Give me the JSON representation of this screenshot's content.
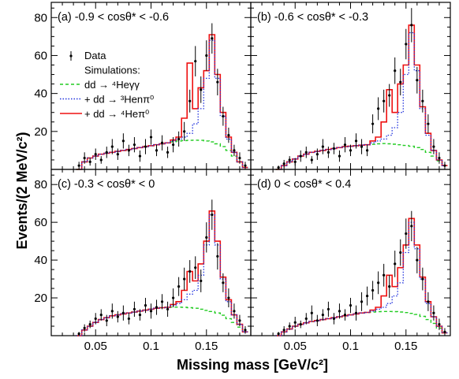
{
  "chart_data": {
    "type": "line",
    "xlabel": "Missing mass [GeV/c²]",
    "ylabel": "Events/(2 MeV/c²)",
    "xlim": [
      0.01,
      0.19
    ],
    "ylim": [
      0,
      88
    ],
    "x_ticks": [
      0.05,
      0.1,
      0.15
    ],
    "x_tick_labels": [
      "0.05",
      "0.1",
      "0.15"
    ],
    "y_ticks": [
      20,
      40,
      60,
      80
    ],
    "y_tick_labels": [
      "20",
      "40",
      "60",
      "80"
    ],
    "legend": {
      "placement": "panel-a-left",
      "entries": [
        {
          "label": "Data",
          "style": "marker"
        },
        {
          "label": "Simulations:",
          "style": "none"
        },
        {
          "label": "dd → ⁴Heγγ",
          "style": "dashed",
          "color": "#22cc22"
        },
        {
          "label": "+ dd → ³Henπ⁰",
          "style": "dotted",
          "color": "#2233dd"
        },
        {
          "label": "+ dd → ⁴Heπ⁰",
          "style": "solid",
          "color": "#ee1111"
        }
      ]
    },
    "colors": {
      "data": "#000000",
      "gg": "#22cc22",
      "npi": "#2233dd",
      "pi0": "#ee1111",
      "total": "#cc22cc"
    },
    "panels": [
      {
        "title": "(a) -0.9 < cosθ* < -0.6",
        "x": [
          0.035,
          0.04,
          0.045,
          0.05,
          0.055,
          0.06,
          0.065,
          0.07,
          0.075,
          0.08,
          0.085,
          0.09,
          0.095,
          0.1,
          0.105,
          0.11,
          0.115,
          0.12,
          0.125,
          0.13,
          0.135,
          0.14,
          0.145,
          0.15,
          0.155,
          0.16,
          0.165,
          0.17,
          0.175,
          0.18,
          0.185
        ],
        "data_y": [
          2,
          6,
          4,
          8,
          5,
          9,
          12,
          8,
          15,
          10,
          13,
          7,
          12,
          17,
          10,
          14,
          9,
          13,
          16,
          20,
          36,
          57,
          42,
          60,
          69,
          46,
          28,
          18,
          10,
          6,
          2
        ],
        "data_err": [
          2,
          3,
          2,
          3,
          2,
          3,
          4,
          3,
          4,
          3,
          4,
          3,
          4,
          4,
          3,
          4,
          3,
          4,
          4,
          5,
          6,
          8,
          7,
          8,
          8,
          7,
          5,
          4,
          3,
          3,
          2
        ],
        "gg": [
          0,
          4,
          6,
          7,
          8,
          8.5,
          9,
          9.5,
          10,
          10.5,
          11,
          11.5,
          12,
          12.5,
          13,
          13.5,
          14,
          14.5,
          15,
          15.2,
          15.3,
          15.4,
          15.3,
          15,
          14.5,
          13.5,
          12,
          10,
          7,
          4,
          1
        ],
        "npi": [
          0,
          4,
          6,
          7,
          8,
          8.5,
          9,
          9.5,
          10,
          10.5,
          11,
          11.5,
          12,
          12.5,
          13,
          13.5,
          14,
          15,
          16,
          17,
          19,
          24,
          32,
          48,
          68,
          48,
          28,
          16,
          9,
          4,
          1
        ],
        "pi0": [
          0,
          4,
          6,
          7,
          8,
          8.5,
          9,
          9.5,
          10,
          10.5,
          11,
          11.5,
          12,
          12.5,
          13,
          13.5,
          14,
          15.5,
          17,
          27,
          56,
          32,
          43,
          52,
          71,
          50,
          30,
          17,
          9,
          4,
          1
        ]
      },
      {
        "title": "(b) -0.6 < cosθ* < -0.3",
        "x": [
          0.035,
          0.04,
          0.045,
          0.05,
          0.055,
          0.06,
          0.065,
          0.07,
          0.075,
          0.08,
          0.085,
          0.09,
          0.095,
          0.1,
          0.105,
          0.11,
          0.115,
          0.12,
          0.125,
          0.13,
          0.135,
          0.14,
          0.145,
          0.15,
          0.155,
          0.16,
          0.165,
          0.17,
          0.175,
          0.18,
          0.185
        ],
        "data_y": [
          1,
          3,
          5,
          4,
          7,
          9,
          5,
          8,
          12,
          9,
          11,
          7,
          13,
          10,
          15,
          12,
          10,
          24,
          32,
          36,
          39,
          52,
          46,
          66,
          76,
          47,
          36,
          24,
          12,
          6,
          2
        ],
        "data_err": [
          1,
          2,
          2,
          2,
          3,
          3,
          2,
          3,
          4,
          3,
          3,
          3,
          4,
          3,
          4,
          4,
          3,
          5,
          6,
          6,
          6,
          7,
          7,
          8,
          9,
          7,
          6,
          5,
          4,
          3,
          2
        ],
        "gg": [
          0,
          2,
          4,
          5.5,
          7,
          8,
          9,
          9.5,
          10,
          10.5,
          11,
          11.5,
          12,
          12.2,
          12.5,
          12.8,
          13,
          13.2,
          13.5,
          13.6,
          13.5,
          13.3,
          13,
          12.6,
          12.2,
          11.5,
          10.5,
          9,
          7,
          4.5,
          2
        ],
        "npi": [
          0,
          2,
          4,
          5.5,
          7,
          8,
          9,
          9.5,
          10,
          10.5,
          11,
          11.5,
          12,
          12.2,
          12.5,
          12.8,
          13,
          14,
          15,
          16,
          18,
          22,
          30,
          50,
          72,
          52,
          32,
          18,
          10,
          5,
          2
        ],
        "pi0": [
          0,
          2,
          4,
          5.5,
          7,
          8,
          9,
          9.5,
          10,
          10.5,
          11,
          11.5,
          12,
          12.2,
          12.5,
          12.8,
          13,
          15,
          17,
          25,
          42,
          30,
          45,
          55,
          76,
          55,
          33,
          19,
          10,
          5,
          2
        ]
      },
      {
        "title": "(c) -0.3 < cosθ* < 0",
        "x": [
          0.035,
          0.04,
          0.045,
          0.05,
          0.055,
          0.06,
          0.065,
          0.07,
          0.075,
          0.08,
          0.085,
          0.09,
          0.095,
          0.1,
          0.105,
          0.11,
          0.115,
          0.12,
          0.125,
          0.13,
          0.135,
          0.14,
          0.145,
          0.15,
          0.155,
          0.16,
          0.165,
          0.17,
          0.175,
          0.18,
          0.185
        ],
        "data_y": [
          1,
          4,
          6,
          9,
          11,
          8,
          13,
          10,
          12,
          9,
          14,
          11,
          16,
          13,
          15,
          18,
          14,
          20,
          26,
          30,
          34,
          36,
          29,
          52,
          64,
          42,
          28,
          20,
          13,
          8,
          3
        ],
        "data_err": [
          1,
          2,
          2,
          3,
          3,
          3,
          4,
          3,
          4,
          3,
          4,
          3,
          4,
          4,
          4,
          4,
          4,
          5,
          5,
          6,
          6,
          6,
          6,
          8,
          8,
          7,
          5,
          5,
          4,
          3,
          2
        ],
        "gg": [
          0,
          3,
          5,
          7,
          8.5,
          9.5,
          10.5,
          11,
          11.5,
          12,
          12.5,
          13,
          13.5,
          14,
          14.5,
          14.8,
          15,
          15.1,
          15.1,
          15,
          14.8,
          14.5,
          14,
          13.4,
          12.8,
          12,
          10.8,
          9,
          7,
          4.5,
          2
        ],
        "npi": [
          0,
          3,
          5,
          7,
          8.5,
          9.5,
          10.5,
          11,
          11.5,
          12,
          12.5,
          13,
          13.5,
          14,
          14.5,
          14.8,
          15,
          16,
          17,
          19,
          22,
          24,
          32,
          48,
          64,
          48,
          30,
          18,
          11,
          6,
          2
        ],
        "pi0": [
          0,
          3,
          5,
          7,
          8.5,
          9.5,
          10.5,
          11,
          11.5,
          12,
          12.5,
          13,
          13.5,
          14,
          14.5,
          14.8,
          15,
          16.5,
          18,
          24,
          34,
          29,
          38,
          50,
          66,
          50,
          31,
          19,
          11,
          6,
          2
        ]
      },
      {
        "title": "(d) 0 < cosθ* < 0.4",
        "x": [
          0.035,
          0.04,
          0.045,
          0.05,
          0.055,
          0.06,
          0.065,
          0.07,
          0.075,
          0.08,
          0.085,
          0.09,
          0.095,
          0.1,
          0.105,
          0.11,
          0.115,
          0.12,
          0.125,
          0.13,
          0.135,
          0.14,
          0.145,
          0.15,
          0.155,
          0.16,
          0.165,
          0.17,
          0.175,
          0.18,
          0.185
        ],
        "data_y": [
          1,
          3,
          5,
          7,
          6,
          9,
          12,
          8,
          11,
          14,
          9,
          13,
          11,
          16,
          12,
          18,
          21,
          24,
          28,
          32,
          26,
          38,
          44,
          54,
          58,
          40,
          30,
          18,
          12,
          6,
          2
        ],
        "data_err": [
          1,
          2,
          2,
          3,
          2,
          3,
          4,
          3,
          3,
          4,
          3,
          4,
          3,
          4,
          4,
          5,
          5,
          5,
          6,
          6,
          6,
          7,
          7,
          8,
          8,
          7,
          6,
          5,
          4,
          3,
          2
        ],
        "gg": [
          0,
          2,
          3.5,
          5,
          6,
          6.8,
          7.5,
          8,
          8.5,
          9,
          9.5,
          10,
          10.5,
          11,
          11.5,
          12,
          12.3,
          12.5,
          12.7,
          12.8,
          12.8,
          12.7,
          12.5,
          12.2,
          11.8,
          11.2,
          10.2,
          8.5,
          6.5,
          4,
          1.5
        ],
        "npi": [
          0,
          2,
          3.5,
          5,
          6,
          6.8,
          7.5,
          8,
          8.5,
          9,
          9.5,
          10,
          10.5,
          11,
          11.5,
          12,
          12.3,
          13,
          14,
          15,
          17,
          21,
          28,
          44,
          60,
          46,
          30,
          17,
          10,
          5,
          1.5
        ],
        "pi0": [
          0,
          2,
          3.5,
          5,
          6,
          6.8,
          7.5,
          8,
          8.5,
          9,
          9.5,
          10,
          10.5,
          11,
          11.5,
          12,
          12.3,
          13.5,
          15,
          21,
          32,
          26,
          36,
          48,
          62,
          48,
          31,
          18,
          10,
          5,
          1.5
        ]
      }
    ]
  }
}
